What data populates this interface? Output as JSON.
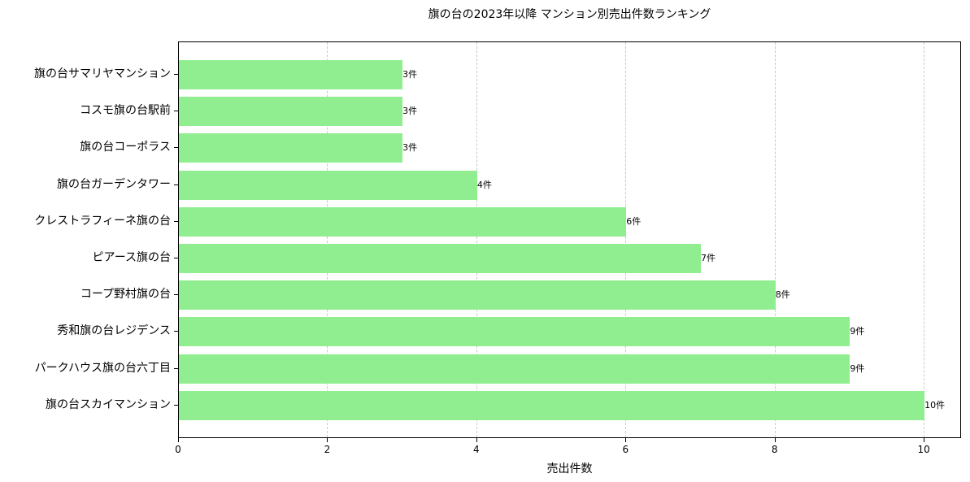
{
  "chart_data": {
    "type": "bar",
    "orientation": "horizontal",
    "title": "旗の台の2023年以降 マンション別売出件数ランキング",
    "xlabel": "売出件数",
    "ylabel": "",
    "xlim": [
      0,
      10.5
    ],
    "x_ticks": [
      "0",
      "2",
      "4",
      "6",
      "8",
      "10"
    ],
    "grid": {
      "x": true,
      "y": false,
      "style": "dashed"
    },
    "bar_color": "#90ee90",
    "value_suffix": "件",
    "categories": [
      "旗の台サマリヤマンション",
      "コスモ旗の台駅前",
      "旗の台コーポラス",
      "旗の台ガーデンタワー",
      "クレストラフィーネ旗の台",
      "ピアース旗の台",
      "コープ野村旗の台",
      "秀和旗の台レジデンス",
      "パークハウス旗の台六丁目",
      "旗の台スカイマンション"
    ],
    "values": [
      3,
      3,
      3,
      4,
      6,
      7,
      8,
      9,
      9,
      10
    ],
    "bar_labels": [
      "3件",
      "3件",
      "3件",
      "4件",
      "6件",
      "7件",
      "8件",
      "9件",
      "9件",
      "10件"
    ]
  }
}
